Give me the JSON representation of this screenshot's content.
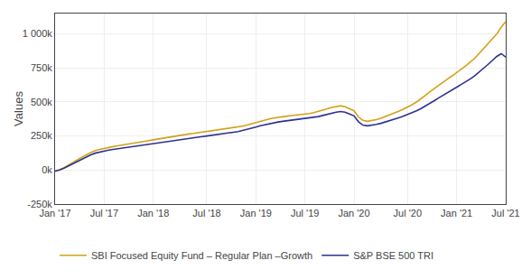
{
  "chart_data": {
    "type": "line",
    "ylabel": "Values",
    "categories": [
      "Jan '17",
      null,
      null,
      null,
      null,
      null,
      null,
      null,
      null,
      null,
      null,
      "Jul '17",
      null,
      null,
      null,
      null,
      null,
      null,
      null,
      null,
      null,
      null,
      "Jan '18",
      null,
      null,
      null,
      null,
      null,
      null,
      null,
      null,
      null,
      null,
      null,
      "Jul '18",
      null,
      null,
      null,
      null,
      null,
      null,
      null,
      null,
      null,
      null,
      "Jan '19",
      null,
      null,
      null,
      null,
      null,
      null,
      null,
      null,
      null,
      null,
      "Jul '19",
      null,
      null,
      null,
      null,
      null,
      null,
      null,
      null,
      null,
      null,
      "Jan '20",
      null,
      null,
      null,
      null,
      null,
      null,
      null,
      null,
      null,
      null,
      null,
      "Jul '20",
      null,
      null,
      null,
      null,
      null,
      null,
      null,
      null,
      null,
      null,
      "Jan '21",
      null,
      null,
      null,
      null,
      null,
      null,
      null,
      null,
      null,
      null,
      "Jul '21"
    ],
    "series": [
      {
        "name": "SBI Focused Equity Fund – Regular Plan –Growth",
        "color": "#d4a017",
        "values": [
          -8000,
          2000,
          18000,
          35000,
          55000,
          75000,
          95000,
          112000,
          128000,
          143000,
          152000,
          160000,
          166000,
          172000,
          178000,
          183000,
          187000,
          192000,
          197000,
          203000,
          209000,
          216000,
          222000,
          228000,
          233000,
          238000,
          242000,
          248000,
          254000,
          260000,
          265000,
          269000,
          274000,
          279000,
          282000,
          286000,
          290000,
          295000,
          300000,
          305000,
          310000,
          315000,
          322000,
          330000,
          340000,
          350000,
          360000,
          368000,
          375000,
          382000,
          388000,
          392000,
          396000,
          400000,
          403000,
          406000,
          410000,
          415000,
          422000,
          430000,
          440000,
          450000,
          460000,
          468000,
          472000,
          465000,
          450000,
          435000,
          390000,
          365000,
          358000,
          362000,
          370000,
          380000,
          392000,
          405000,
          418000,
          432000,
          447000,
          462000,
          480000,
          500000,
          523000,
          548000,
          575000,
          600000,
          625000,
          648000,
          670000,
          692000,
          715000,
          740000,
          765000,
          792000,
          820000,
          855000,
          890000,
          928000,
          965000,
          1000000,
          1050000,
          1090000
        ]
      },
      {
        "name": "S&P BSE 500 TRI",
        "color": "#2e3192",
        "values": [
          -8000,
          0,
          14000,
          30000,
          48000,
          65000,
          82000,
          98000,
          112000,
          124000,
          133000,
          140000,
          146000,
          151000,
          156000,
          160000,
          164000,
          168000,
          172000,
          177000,
          182000,
          188000,
          193000,
          198000,
          203000,
          207000,
          211000,
          216000,
          222000,
          228000,
          233000,
          237000,
          242000,
          246000,
          250000,
          254000,
          258000,
          263000,
          268000,
          273000,
          278000,
          283000,
          290000,
          298000,
          307000,
          316000,
          325000,
          333000,
          340000,
          347000,
          353000,
          358000,
          362000,
          366000,
          370000,
          373000,
          376000,
          380000,
          386000,
          393000,
          401000,
          410000,
          418000,
          425000,
          430000,
          425000,
          412000,
          398000,
          355000,
          330000,
          325000,
          328000,
          335000,
          343000,
          352000,
          362000,
          372000,
          383000,
          395000,
          407000,
          420000,
          435000,
          452000,
          470000,
          490000,
          510000,
          530000,
          550000,
          568000,
          586000,
          605000,
          625000,
          646000,
          668000,
          692000,
          718000,
          745000,
          775000,
          805000,
          835000,
          855000,
          830000
        ]
      }
    ],
    "ylim": [
      -250000,
      1150000
    ],
    "yticks": [
      {
        "value": -250000,
        "label": "-250k"
      },
      {
        "value": 0,
        "label": "0k"
      },
      {
        "value": 250000,
        "label": "250k"
      },
      {
        "value": 500000,
        "label": "500k"
      },
      {
        "value": 750000,
        "label": "750k"
      },
      {
        "value": 1000000,
        "label": "1 000k"
      }
    ],
    "grid": true,
    "legend": "lower left"
  }
}
